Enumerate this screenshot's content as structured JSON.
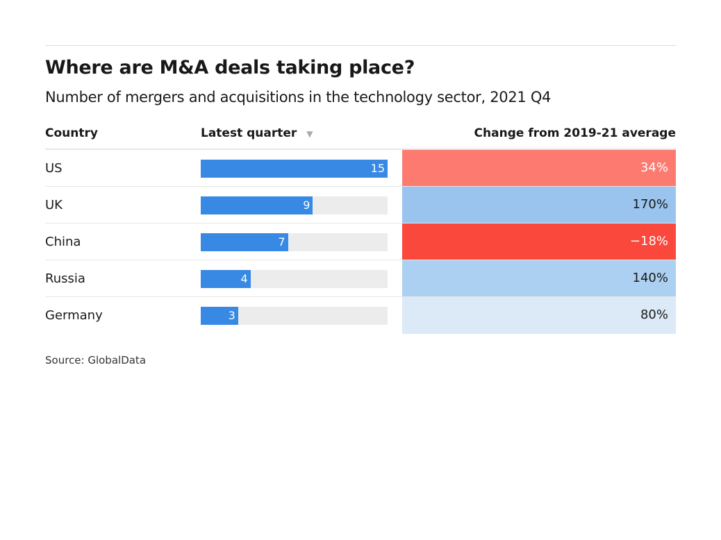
{
  "title": "Where are M&A deals taking place?",
  "subtitle": "Number of mergers and acquisitions in the technology sector, 2021 Q4",
  "source": "Source: GlobalData",
  "chart_data": {
    "type": "table",
    "columns": [
      "Country",
      "Latest quarter",
      "Change from 2019-21 average"
    ],
    "sort_indicator": "▼",
    "bar_max": 15,
    "bar_color": "#3789e3",
    "rows": [
      {
        "country": "US",
        "latest": 15,
        "latest_label": "15",
        "change": 34,
        "change_label": "34%",
        "color": "#fc7a70",
        "text_color": "#ffffff"
      },
      {
        "country": "UK",
        "latest": 9,
        "latest_label": "9",
        "change": 170,
        "change_label": "170%",
        "color": "#9ac4ee",
        "text_color": "#181818"
      },
      {
        "country": "China",
        "latest": 7,
        "latest_label": "7",
        "change": -18,
        "change_label": "−18%",
        "color": "#fa483c",
        "text_color": "#ffffff"
      },
      {
        "country": "Russia",
        "latest": 4,
        "latest_label": "4",
        "change": 140,
        "change_label": "140%",
        "color": "#acd0f1",
        "text_color": "#181818"
      },
      {
        "country": "Germany",
        "latest": 3,
        "latest_label": "3",
        "change": 80,
        "change_label": "80%",
        "color": "#dce9f6",
        "text_color": "#181818"
      }
    ]
  }
}
